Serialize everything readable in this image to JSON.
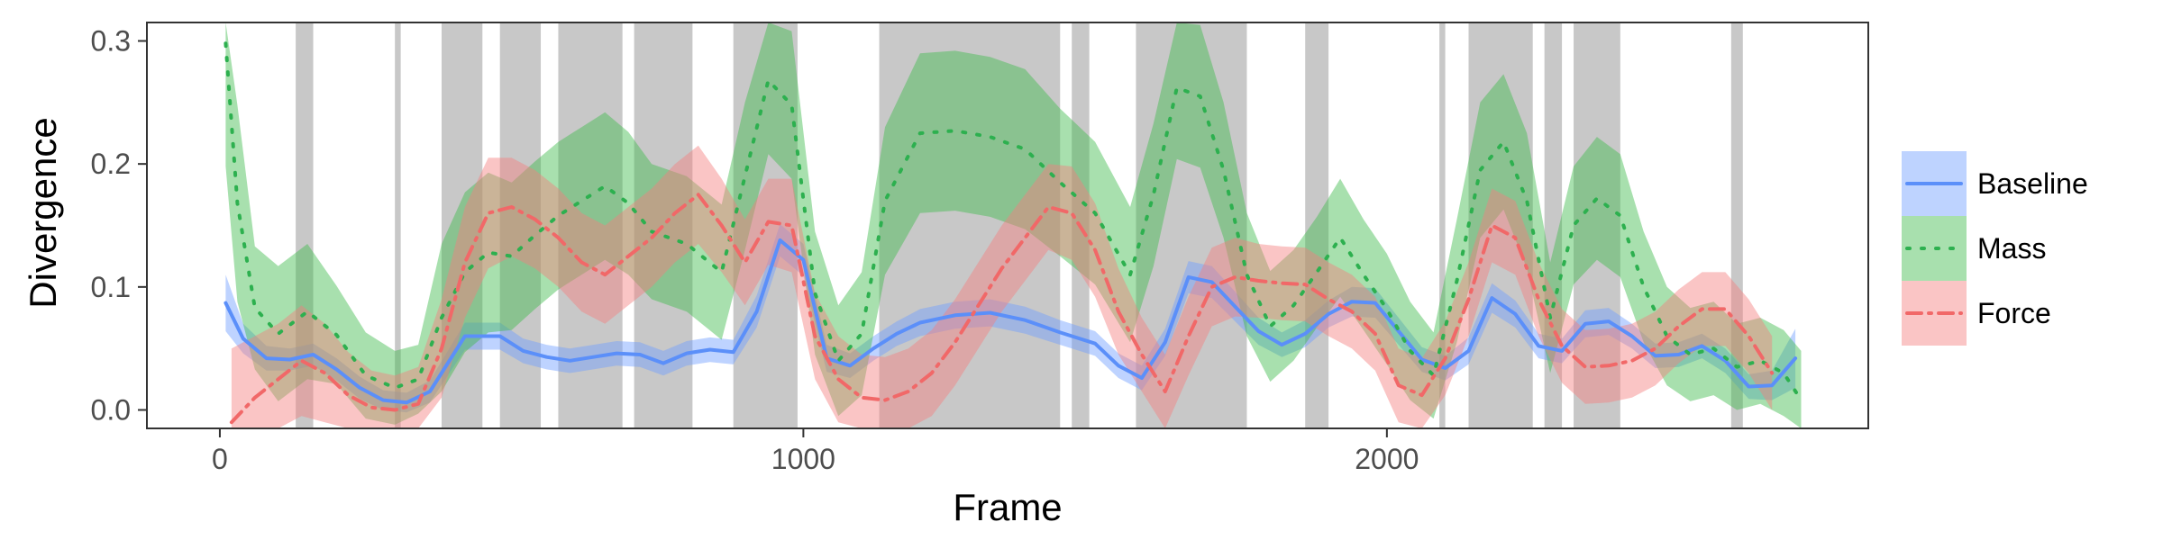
{
  "chart_data": {
    "type": "line",
    "title": "",
    "xlabel": "Frame",
    "ylabel": "Divergence",
    "xlim": [
      -125,
      2825
    ],
    "ylim": [
      -0.015,
      0.315
    ],
    "x_ticks": [
      0,
      1000,
      2000
    ],
    "x_tick_labels": [
      "0",
      "1000",
      "2000"
    ],
    "y_ticks": [
      0.0,
      0.1,
      0.2,
      0.3
    ],
    "y_tick_labels": [
      "0.0",
      "0.1",
      "0.2",
      "0.3"
    ],
    "grid": false,
    "legend_position": "right",
    "shaded_intervals": [
      [
        130,
        160
      ],
      [
        300,
        310
      ],
      [
        380,
        450
      ],
      [
        480,
        550
      ],
      [
        580,
        690
      ],
      [
        710,
        810
      ],
      [
        880,
        990
      ],
      [
        1130,
        1440
      ],
      [
        1460,
        1490
      ],
      [
        1570,
        1760
      ],
      [
        1860,
        1900
      ],
      [
        2090,
        2100
      ],
      [
        2140,
        2250
      ],
      [
        2270,
        2300
      ],
      [
        2320,
        2400
      ],
      [
        2590,
        2610
      ]
    ],
    "shade_color": "#c8c8c8",
    "series": [
      {
        "name": "Baseline",
        "style": "solid",
        "color": "#5b8ff9",
        "fill": "#6f9dff",
        "x": [
          10,
          40,
          80,
          120,
          160,
          200,
          240,
          280,
          320,
          360,
          420,
          480,
          520,
          560,
          600,
          640,
          680,
          720,
          760,
          800,
          840,
          880,
          920,
          960,
          1000,
          1040,
          1080,
          1120,
          1160,
          1200,
          1260,
          1320,
          1380,
          1440,
          1500,
          1540,
          1580,
          1620,
          1660,
          1700,
          1740,
          1780,
          1820,
          1860,
          1900,
          1940,
          1980,
          2020,
          2060,
          2100,
          2140,
          2180,
          2220,
          2260,
          2300,
          2340,
          2380,
          2420,
          2460,
          2500,
          2540,
          2580,
          2620,
          2660,
          2700
        ],
        "y": [
          0.087,
          0.058,
          0.042,
          0.041,
          0.045,
          0.033,
          0.018,
          0.008,
          0.006,
          0.015,
          0.06,
          0.06,
          0.048,
          0.043,
          0.04,
          0.043,
          0.046,
          0.045,
          0.038,
          0.046,
          0.049,
          0.047,
          0.08,
          0.138,
          0.122,
          0.042,
          0.036,
          0.05,
          0.062,
          0.071,
          0.077,
          0.079,
          0.073,
          0.063,
          0.054,
          0.036,
          0.026,
          0.055,
          0.108,
          0.104,
          0.084,
          0.064,
          0.053,
          0.062,
          0.078,
          0.088,
          0.087,
          0.064,
          0.041,
          0.034,
          0.048,
          0.091,
          0.078,
          0.052,
          0.048,
          0.07,
          0.072,
          0.06,
          0.044,
          0.045,
          0.052,
          0.04,
          0.019,
          0.02,
          0.042
        ],
        "band_half_width": [
          0.023,
          0.012,
          0.01,
          0.009,
          0.009,
          0.009,
          0.009,
          0.008,
          0.008,
          0.009,
          0.011,
          0.011,
          0.01,
          0.01,
          0.01,
          0.01,
          0.01,
          0.01,
          0.01,
          0.01,
          0.01,
          0.01,
          0.013,
          0.013,
          0.013,
          0.011,
          0.01,
          0.01,
          0.01,
          0.011,
          0.011,
          0.011,
          0.011,
          0.01,
          0.01,
          0.01,
          0.01,
          0.011,
          0.013,
          0.013,
          0.012,
          0.011,
          0.01,
          0.011,
          0.011,
          0.012,
          0.012,
          0.011,
          0.01,
          0.01,
          0.011,
          0.012,
          0.011,
          0.01,
          0.01,
          0.011,
          0.011,
          0.01,
          0.01,
          0.01,
          0.01,
          0.01,
          0.01,
          0.012,
          0.024
        ]
      },
      {
        "name": "Mass",
        "style": "dotted",
        "color": "#2db04f",
        "fill": "#3dbb4c",
        "x": [
          10,
          30,
          60,
          100,
          150,
          200,
          250,
          300,
          340,
          380,
          420,
          460,
          500,
          540,
          580,
          620,
          660,
          700,
          740,
          800,
          860,
          900,
          940,
          980,
          1020,
          1060,
          1100,
          1140,
          1200,
          1260,
          1320,
          1380,
          1440,
          1500,
          1560,
          1600,
          1640,
          1680,
          1720,
          1760,
          1800,
          1840,
          1880,
          1920,
          1960,
          2000,
          2040,
          2080,
          2120,
          2160,
          2200,
          2240,
          2280,
          2320,
          2360,
          2400,
          2440,
          2480,
          2520,
          2560,
          2600,
          2640,
          2680,
          2710
        ],
        "y": [
          0.298,
          0.168,
          0.083,
          0.062,
          0.08,
          0.061,
          0.028,
          0.018,
          0.025,
          0.075,
          0.112,
          0.128,
          0.125,
          0.142,
          0.158,
          0.17,
          0.182,
          0.168,
          0.145,
          0.135,
          0.112,
          0.19,
          0.268,
          0.248,
          0.095,
          0.04,
          0.062,
          0.17,
          0.225,
          0.227,
          0.222,
          0.212,
          0.185,
          0.16,
          0.11,
          0.175,
          0.262,
          0.255,
          0.195,
          0.11,
          0.068,
          0.085,
          0.112,
          0.14,
          0.11,
          0.082,
          0.048,
          0.028,
          0.105,
          0.195,
          0.218,
          0.17,
          0.075,
          0.15,
          0.172,
          0.158,
          0.1,
          0.06,
          0.045,
          0.05,
          0.035,
          0.04,
          0.03,
          0.008
        ],
        "band_half_width": [
          0.1,
          0.08,
          0.05,
          0.055,
          0.055,
          0.04,
          0.035,
          0.03,
          0.028,
          0.06,
          0.065,
          0.065,
          0.06,
          0.06,
          0.06,
          0.06,
          0.06,
          0.058,
          0.055,
          0.055,
          0.055,
          0.06,
          0.06,
          0.06,
          0.05,
          0.045,
          0.05,
          0.06,
          0.065,
          0.065,
          0.065,
          0.065,
          0.06,
          0.058,
          0.055,
          0.058,
          0.058,
          0.058,
          0.055,
          0.05,
          0.045,
          0.045,
          0.045,
          0.048,
          0.045,
          0.045,
          0.04,
          0.035,
          0.05,
          0.055,
          0.055,
          0.055,
          0.045,
          0.048,
          0.05,
          0.05,
          0.045,
          0.04,
          0.038,
          0.038,
          0.035,
          0.035,
          0.035,
          0.04
        ]
      },
      {
        "name": "Force",
        "style": "dashdot",
        "color": "#f16868",
        "fill": "#f47e7e",
        "x": [
          20,
          60,
          100,
          140,
          180,
          220,
          260,
          300,
          340,
          380,
          420,
          460,
          500,
          540,
          580,
          620,
          660,
          700,
          740,
          780,
          820,
          860,
          900,
          940,
          980,
          1020,
          1060,
          1100,
          1140,
          1180,
          1220,
          1260,
          1300,
          1340,
          1380,
          1420,
          1460,
          1500,
          1540,
          1580,
          1620,
          1660,
          1700,
          1740,
          1780,
          1820,
          1860,
          1900,
          1940,
          1980,
          2020,
          2060,
          2100,
          2140,
          2180,
          2220,
          2260,
          2300,
          2340,
          2380,
          2420,
          2460,
          2500,
          2540,
          2580,
          2620,
          2660
        ],
        "y": [
          -0.01,
          0.01,
          0.025,
          0.04,
          0.03,
          0.012,
          0.002,
          0.0,
          0.005,
          0.05,
          0.12,
          0.16,
          0.165,
          0.155,
          0.14,
          0.12,
          0.11,
          0.125,
          0.14,
          0.16,
          0.175,
          0.15,
          0.12,
          0.153,
          0.15,
          0.06,
          0.025,
          0.01,
          0.008,
          0.015,
          0.03,
          0.055,
          0.085,
          0.115,
          0.14,
          0.165,
          0.16,
          0.13,
          0.08,
          0.045,
          0.015,
          0.06,
          0.1,
          0.108,
          0.105,
          0.103,
          0.102,
          0.09,
          0.08,
          0.062,
          0.02,
          0.012,
          0.042,
          0.09,
          0.15,
          0.14,
          0.09,
          0.052,
          0.035,
          0.036,
          0.04,
          0.05,
          0.068,
          0.082,
          0.082,
          0.06,
          0.03
        ],
        "band_half_width": [
          0.06,
          0.05,
          0.045,
          0.045,
          0.04,
          0.035,
          0.03,
          0.028,
          0.03,
          0.04,
          0.045,
          0.045,
          0.04,
          0.04,
          0.04,
          0.04,
          0.04,
          0.04,
          0.04,
          0.04,
          0.04,
          0.038,
          0.035,
          0.035,
          0.038,
          0.035,
          0.035,
          0.035,
          0.035,
          0.035,
          0.035,
          0.035,
          0.035,
          0.035,
          0.035,
          0.035,
          0.038,
          0.038,
          0.035,
          0.03,
          0.03,
          0.032,
          0.032,
          0.032,
          0.03,
          0.03,
          0.03,
          0.03,
          0.03,
          0.03,
          0.03,
          0.03,
          0.03,
          0.03,
          0.03,
          0.03,
          0.03,
          0.03,
          0.03,
          0.03,
          0.03,
          0.03,
          0.03,
          0.03,
          0.03,
          0.03,
          0.03
        ]
      }
    ]
  }
}
